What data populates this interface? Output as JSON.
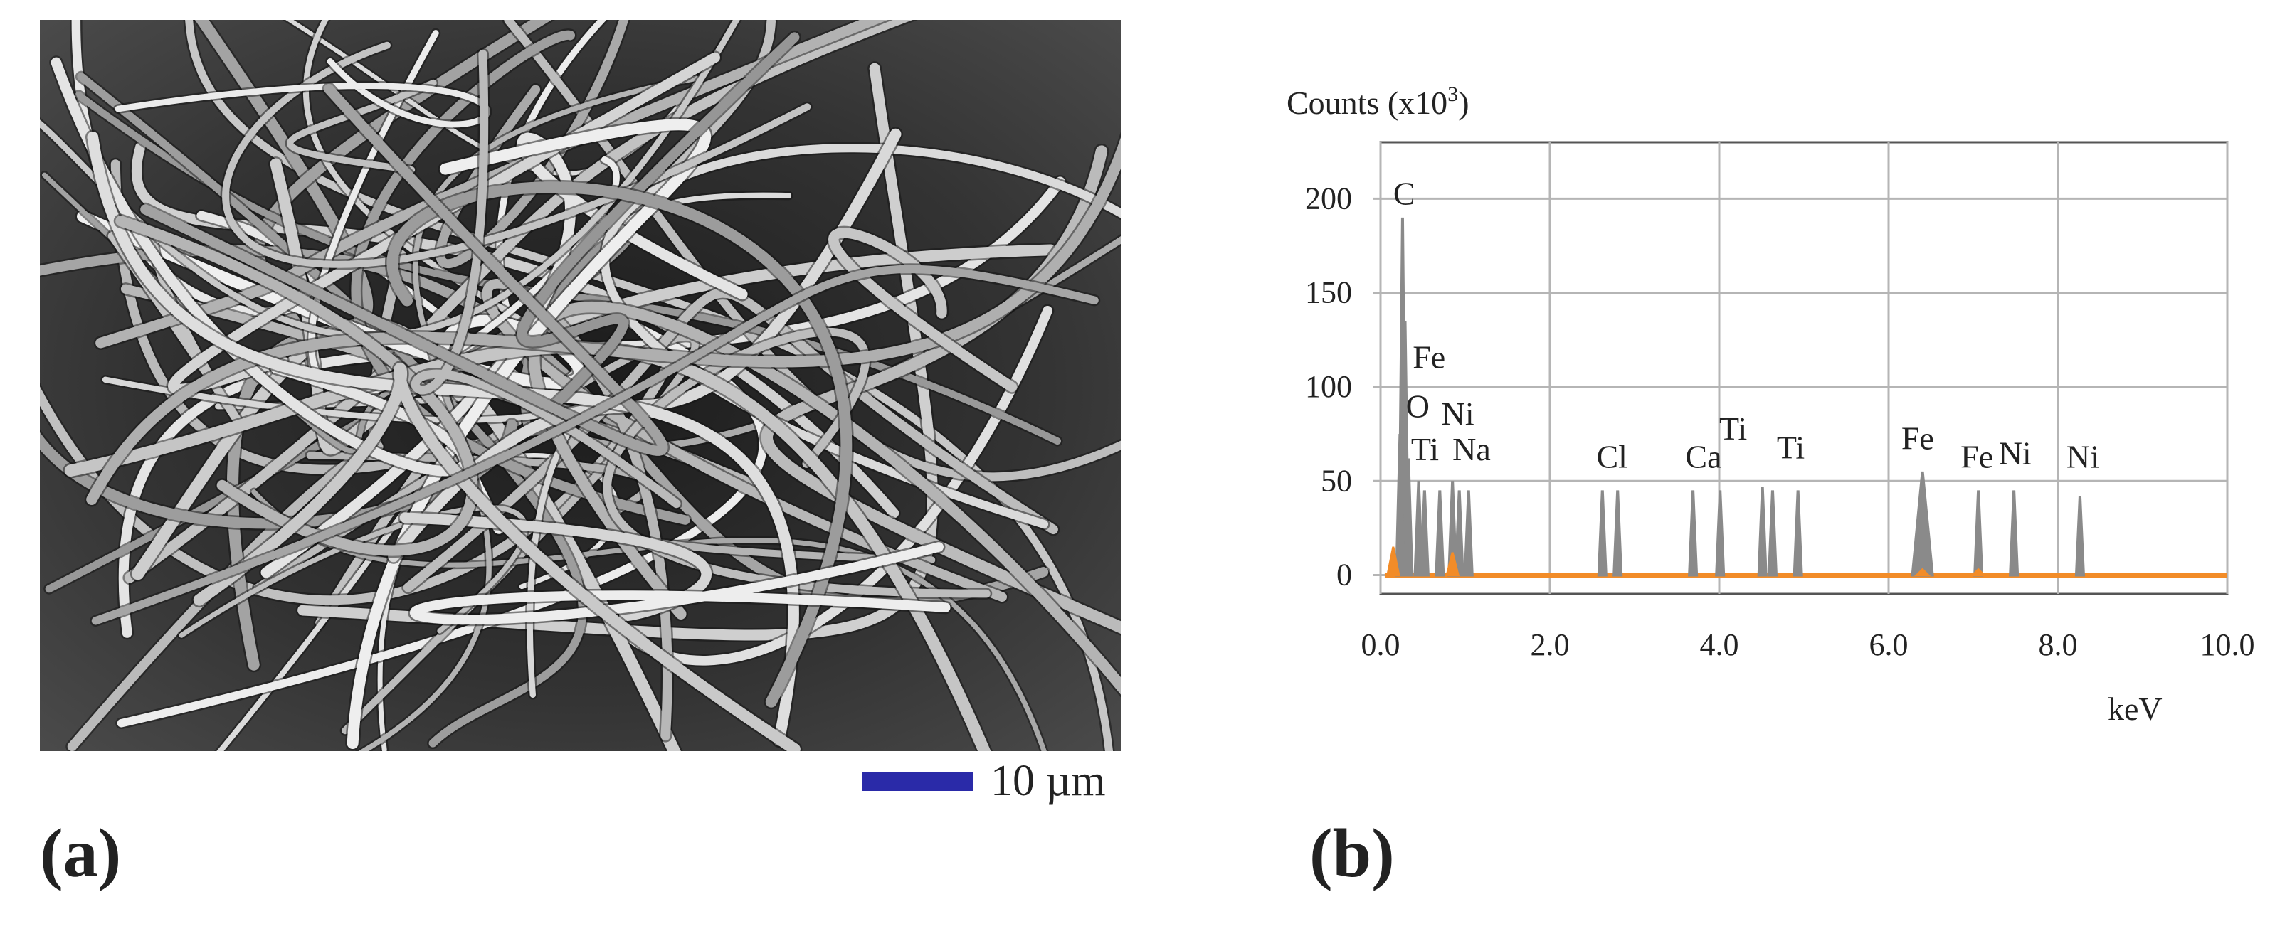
{
  "panel_a": {
    "label": "(a)",
    "scale_bar_label": "10 µm",
    "scale_bar_color": "#2a2aa8"
  },
  "panel_b": {
    "label": "(b)"
  },
  "chart_data": {
    "type": "line",
    "title": "",
    "ylabel": "Counts (x10",
    "ylabel_sup": "3",
    "ylabel_end": ")",
    "xlabel": "keV",
    "xlim": [
      0,
      10
    ],
    "ylim": [
      -10,
      230
    ],
    "x_ticks": [
      {
        "value": 0,
        "label": "0.0"
      },
      {
        "value": 2,
        "label": "2.0"
      },
      {
        "value": 4,
        "label": "4.0"
      },
      {
        "value": 6,
        "label": "6.0"
      },
      {
        "value": 8,
        "label": "8.0"
      },
      {
        "value": 10,
        "label": "10.0"
      }
    ],
    "y_ticks": [
      {
        "value": 0,
        "label": "0"
      },
      {
        "value": 50,
        "label": "50"
      },
      {
        "value": 100,
        "label": "100"
      },
      {
        "value": 150,
        "label": "150"
      },
      {
        "value": 200,
        "label": "200"
      }
    ],
    "grid": true,
    "colors": {
      "spectrum_gray": "#8a8a8a",
      "spectrum_orange": "#f28c28",
      "grid": "#b5b5b5"
    },
    "series": [
      {
        "color": "#8a8a8a",
        "peaks": [
          {
            "x": 0.26,
            "y": 190
          },
          {
            "x": 0.29,
            "y": 135
          },
          {
            "x": 0.23,
            "y": 75
          },
          {
            "x": 0.33,
            "y": 62
          },
          {
            "x": 0.45,
            "y": 50
          },
          {
            "x": 0.52,
            "y": 45
          },
          {
            "x": 0.7,
            "y": 45
          },
          {
            "x": 0.85,
            "y": 50
          },
          {
            "x": 0.93,
            "y": 45
          },
          {
            "x": 1.04,
            "y": 45
          },
          {
            "x": 2.62,
            "y": 45
          },
          {
            "x": 2.8,
            "y": 45
          },
          {
            "x": 3.69,
            "y": 45
          },
          {
            "x": 4.01,
            "y": 45
          },
          {
            "x": 4.51,
            "y": 47
          },
          {
            "x": 4.63,
            "y": 45
          },
          {
            "x": 4.93,
            "y": 45
          },
          {
            "x": 6.4,
            "y": 55
          },
          {
            "x": 7.06,
            "y": 45
          },
          {
            "x": 7.48,
            "y": 45
          },
          {
            "x": 8.26,
            "y": 42
          }
        ]
      },
      {
        "color": "#f28c28",
        "peaks": [
          {
            "x": 0.15,
            "y": 15
          },
          {
            "x": 0.85,
            "y": 12
          },
          {
            "x": 6.4,
            "y": 3
          },
          {
            "x": 7.06,
            "y": 3
          }
        ]
      }
    ],
    "annotations": [
      {
        "text": "C",
        "x": 0.15,
        "y": 197
      },
      {
        "text": "Fe",
        "x": 0.38,
        "y": 110
      },
      {
        "text": "O",
        "x": 0.3,
        "y": 84
      },
      {
        "text": "Ni",
        "x": 0.72,
        "y": 80
      },
      {
        "text": "Ti",
        "x": 0.36,
        "y": 61
      },
      {
        "text": "Na",
        "x": 0.85,
        "y": 61
      },
      {
        "text": "Cl",
        "x": 2.55,
        "y": 57
      },
      {
        "text": "Ca",
        "x": 3.6,
        "y": 57
      },
      {
        "text": "Ti",
        "x": 4.0,
        "y": 72
      },
      {
        "text": "Ti",
        "x": 4.68,
        "y": 62
      },
      {
        "text": "Fe",
        "x": 6.15,
        "y": 67
      },
      {
        "text": "Fe",
        "x": 6.85,
        "y": 57
      },
      {
        "text": "Ni",
        "x": 7.3,
        "y": 59
      },
      {
        "text": "Ni",
        "x": 8.1,
        "y": 57
      }
    ]
  }
}
